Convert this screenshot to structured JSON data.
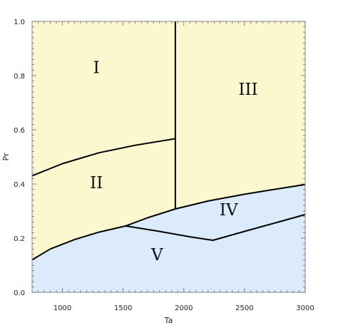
{
  "diagram": {
    "xlabel": "Ta",
    "ylabel": "Pr",
    "xlim": [
      750,
      3000
    ],
    "ylim": [
      0.0,
      1.0
    ],
    "x_ticks": [
      1000,
      1500,
      2000,
      2500,
      3000
    ],
    "y_ticks": [
      0.0,
      0.2,
      0.4,
      0.6,
      0.8,
      1.0
    ],
    "x_tick_labels": [
      "1000",
      "1500",
      "2000",
      "2500",
      "3000"
    ],
    "y_tick_labels": [
      "0.0",
      "0.2",
      "0.4",
      "0.6",
      "0.8",
      "1.0"
    ],
    "colors": {
      "upper_region": "#fbf8d0",
      "lower_region": "#dcebfb",
      "boundary": "#000000",
      "frame": "#888888"
    },
    "regions": [
      {
        "label": "I",
        "x": 1280,
        "y": 0.83
      },
      {
        "label": "II",
        "x": 1280,
        "y": 0.405
      },
      {
        "label": "III",
        "x": 2530,
        "y": 0.75
      },
      {
        "label": "IV",
        "x": 2370,
        "y": 0.305
      },
      {
        "label": "V",
        "x": 1780,
        "y": 0.14
      }
    ],
    "boundaries": [
      {
        "name": "vertical-boundary",
        "points": [
          [
            1930,
            0.308
          ],
          [
            1930,
            1.0
          ]
        ]
      },
      {
        "name": "curve-I-II",
        "points": [
          [
            750,
            0.43
          ],
          [
            1000,
            0.475
          ],
          [
            1300,
            0.515
          ],
          [
            1600,
            0.543
          ],
          [
            1930,
            0.567
          ]
        ]
      },
      {
        "name": "upper-white-blue-boundary",
        "points": [
          [
            750,
            0.12
          ],
          [
            900,
            0.16
          ],
          [
            1100,
            0.195
          ],
          [
            1300,
            0.222
          ],
          [
            1520,
            0.245
          ],
          [
            1700,
            0.275
          ],
          [
            1930,
            0.308
          ],
          [
            2200,
            0.337
          ],
          [
            2500,
            0.362
          ],
          [
            2800,
            0.384
          ],
          [
            3000,
            0.398
          ]
        ]
      },
      {
        "name": "region-IV-lower-boundary",
        "points": [
          [
            1520,
            0.245
          ],
          [
            1800,
            0.225
          ],
          [
            2050,
            0.205
          ],
          [
            2240,
            0.192
          ],
          [
            2500,
            0.225
          ],
          [
            2800,
            0.262
          ],
          [
            3000,
            0.287
          ]
        ]
      }
    ]
  }
}
